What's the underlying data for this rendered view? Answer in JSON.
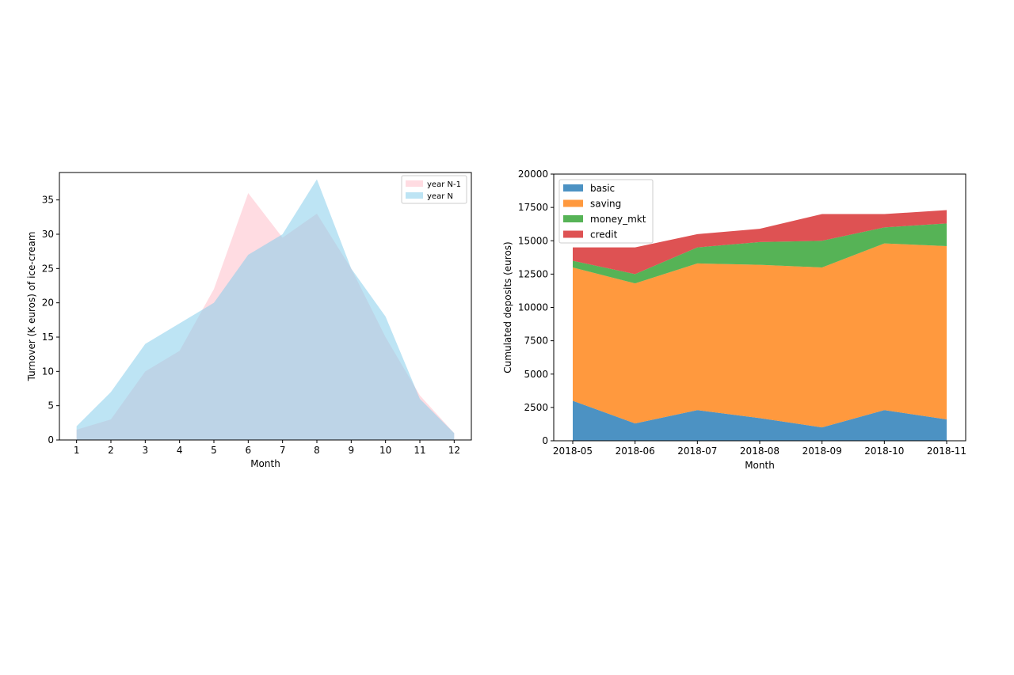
{
  "chart_data": [
    {
      "type": "area",
      "xlabel": "Month",
      "ylabel": "Turnover (K euros) of ice-cream",
      "x": [
        1,
        2,
        3,
        4,
        5,
        6,
        7,
        8,
        9,
        10,
        11,
        12
      ],
      "xticks": [
        "1",
        "2",
        "3",
        "4",
        "5",
        "6",
        "7",
        "8",
        "9",
        "10",
        "11",
        "12"
      ],
      "ylim": [
        0,
        39
      ],
      "yticks": [
        "0",
        "5",
        "10",
        "15",
        "20",
        "25",
        "30",
        "35"
      ],
      "grid": false,
      "legend": "top-right",
      "series": [
        {
          "name": "year N-1",
          "color": "#ffc0cb",
          "values": [
            1.5,
            3,
            10,
            13,
            22,
            36,
            29.5,
            33,
            25,
            15,
            6.5,
            1
          ]
        },
        {
          "name": "year N",
          "color": "#87ceeb",
          "values": [
            2,
            7,
            14,
            17,
            20,
            27,
            30,
            38,
            25,
            18,
            6,
            1
          ]
        }
      ]
    },
    {
      "type": "area",
      "stacked": true,
      "xlabel": "Month",
      "ylabel": "Cumulated deposits (euros)",
      "x": [
        "2018-05",
        "2018-06",
        "2018-07",
        "2018-08",
        "2018-09",
        "2018-10",
        "2018-11"
      ],
      "ylim": [
        0,
        20000
      ],
      "yticks": [
        "0",
        "2500",
        "5000",
        "7500",
        "10000",
        "12500",
        "15000",
        "17500",
        "20000"
      ],
      "grid": false,
      "legend": "top-left",
      "series": [
        {
          "name": "basic",
          "color": "#1f77b4",
          "values": [
            3000,
            1300,
            2300,
            1700,
            1000,
            2300,
            1600
          ]
        },
        {
          "name": "saving",
          "color": "#ff7f0e",
          "values": [
            10000,
            10500,
            11000,
            11500,
            12000,
            12500,
            13000
          ]
        },
        {
          "name": "money_mkt",
          "color": "#2ca02c",
          "values": [
            500,
            700,
            1200,
            1700,
            2000,
            1200,
            1700
          ]
        },
        {
          "name": "credit",
          "color": "#d62728",
          "values": [
            1000,
            2000,
            1000,
            1000,
            2000,
            1000,
            1000
          ]
        }
      ]
    }
  ]
}
